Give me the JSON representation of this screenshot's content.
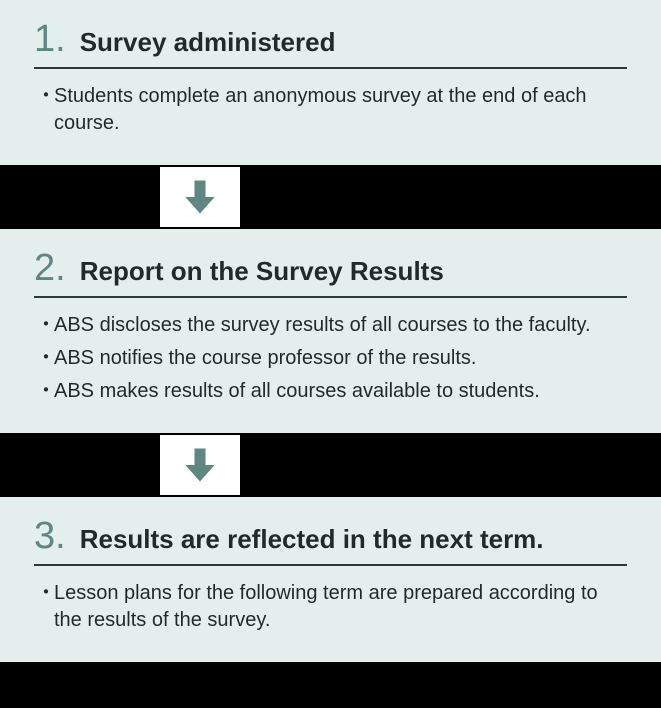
{
  "colors": {
    "section_bg": "#e3efed",
    "number_color": "#5f8681",
    "title_color": "#1f2a2a",
    "rule_color": "#2a3a3a",
    "text_color": "#1f2a2a",
    "arrow_color": "#5f8681",
    "arrow_band_bg": "#000000",
    "arrow_box_bg": "#ffffff"
  },
  "typography": {
    "number_fontsize": 38,
    "title_fontsize": 26,
    "body_fontsize": 20
  },
  "steps": [
    {
      "number": "1.",
      "title": "Survey administered",
      "bullets": [
        "Students complete an anonymous survey at the end of each course."
      ]
    },
    {
      "number": "2.",
      "title": "Report on the Survey Results",
      "bullets": [
        "ABS discloses the survey results of all courses to the faculty.",
        "ABS notifies the course professor of the results.",
        "ABS makes results of all courses available to students."
      ]
    },
    {
      "number": "3.",
      "title": "Results are reflected in the next term.",
      "bullets": [
        "Lesson plans for the following term are prepared according to the results of the survey."
      ]
    }
  ]
}
